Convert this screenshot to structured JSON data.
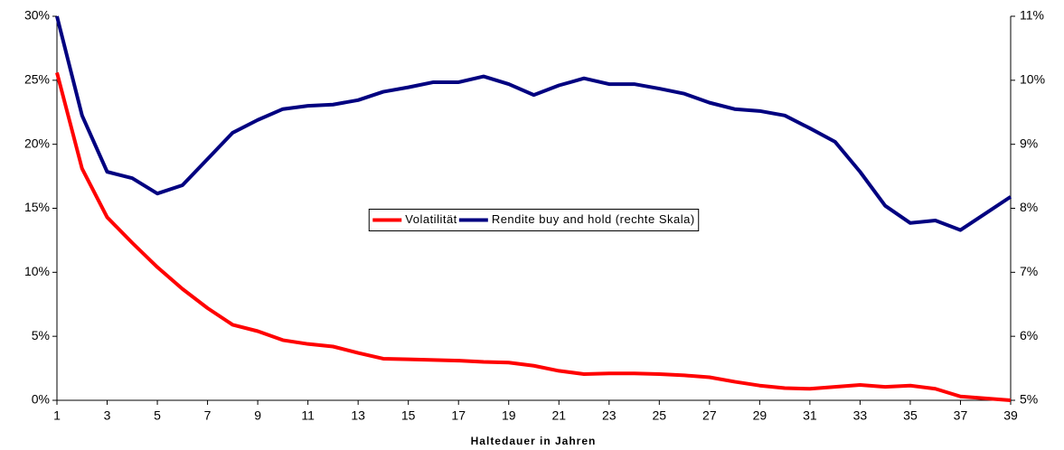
{
  "chart_data": {
    "type": "line",
    "x_label": "Haltedauer in Jahren",
    "x": [
      1,
      2,
      3,
      4,
      5,
      6,
      7,
      8,
      9,
      10,
      11,
      12,
      13,
      14,
      15,
      16,
      17,
      18,
      19,
      20,
      21,
      22,
      23,
      24,
      25,
      26,
      27,
      28,
      29,
      30,
      31,
      32,
      33,
      34,
      35,
      36,
      37,
      38,
      39
    ],
    "xlim": [
      1,
      39
    ],
    "xticks": [
      1,
      3,
      5,
      7,
      9,
      11,
      13,
      15,
      17,
      19,
      21,
      23,
      25,
      27,
      29,
      31,
      33,
      35,
      37,
      39
    ],
    "ylim": [
      0,
      30
    ],
    "yticks": [
      {
        "value": 0,
        "label": "0%"
      },
      {
        "value": 5,
        "label": "5%"
      },
      {
        "value": 10,
        "label": "10%"
      },
      {
        "value": 15,
        "label": "15%"
      },
      {
        "value": 20,
        "label": "20%"
      },
      {
        "value": 25,
        "label": "25%"
      },
      {
        "value": 30,
        "label": "30%"
      }
    ],
    "y2lim": [
      5,
      11
    ],
    "y2ticks": [
      {
        "value": 5,
        "label": "5%"
      },
      {
        "value": 6,
        "label": "6%"
      },
      {
        "value": 7,
        "label": "7%"
      },
      {
        "value": 8,
        "label": "8%"
      },
      {
        "value": 9,
        "label": "9%"
      },
      {
        "value": 10,
        "label": "10%"
      },
      {
        "value": 11,
        "label": "11%"
      }
    ],
    "legend": "center",
    "series": [
      {
        "name": "Volatilität",
        "color": "#ff0000",
        "axis": "y",
        "values": [
          25.6,
          18.1,
          14.3,
          12.3,
          10.4,
          8.7,
          7.2,
          5.9,
          5.4,
          4.7,
          4.4,
          4.2,
          3.7,
          3.25,
          3.2,
          3.15,
          3.1,
          3.0,
          2.95,
          2.7,
          2.3,
          2.05,
          2.1,
          2.1,
          2.05,
          1.95,
          1.8,
          1.45,
          1.15,
          0.95,
          0.9,
          1.05,
          1.2,
          1.05,
          1.15,
          0.9,
          0.3,
          0.15,
          0.0
        ]
      },
      {
        "name": "Rendite buy and hold (rechte Skala)",
        "color": "#000080",
        "axis": "y2",
        "values": [
          11.0,
          9.45,
          8.57,
          8.47,
          8.23,
          8.36,
          8.77,
          9.18,
          9.38,
          9.55,
          9.6,
          9.62,
          9.69,
          9.82,
          9.89,
          9.97,
          9.97,
          10.06,
          9.94,
          9.77,
          9.92,
          10.03,
          9.94,
          9.94,
          9.87,
          9.79,
          9.65,
          9.55,
          9.52,
          9.45,
          9.25,
          9.04,
          8.57,
          8.04,
          7.77,
          7.81,
          7.66,
          7.92,
          8.18
        ]
      }
    ]
  }
}
